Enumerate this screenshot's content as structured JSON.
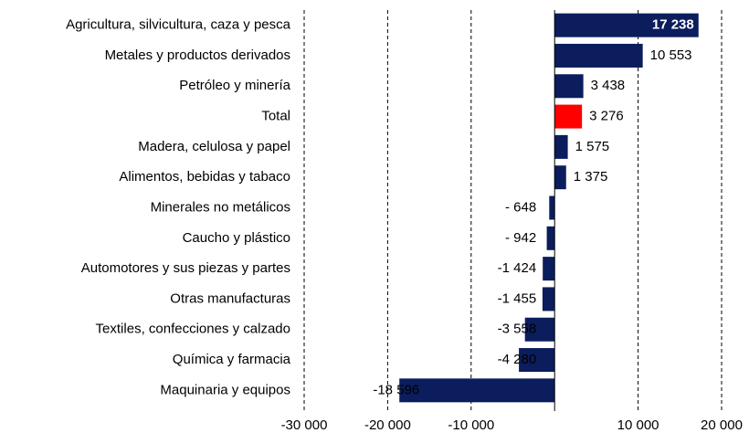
{
  "chart_data": {
    "type": "hbar",
    "categories": [
      "Agricultura, silvicultura, caza y pesca",
      "Metales y productos derivados",
      "Petróleo y minería",
      "Total",
      "Madera, celulosa y papel",
      "Alimentos, bebidas y tabaco",
      "Minerales no metálicos",
      "Caucho y plástico",
      "Automotores y sus piezas y partes",
      "Otras manufacturas",
      "Textiles, confecciones y calzado",
      "Química y farmacia",
      "Maquinaria y equipos"
    ],
    "values": [
      17238,
      10553,
      3438,
      3276,
      1575,
      1375,
      -648,
      -942,
      -1424,
      -1455,
      -3558,
      -4280,
      -18596
    ],
    "value_labels": [
      "17 238",
      "10 553",
      "3 438",
      "3 276",
      "1 575",
      "1 375",
      "- 648",
      "- 942",
      "-1 424",
      "-1 455",
      "-3 558",
      "-4 280",
      "-18 596"
    ],
    "colors": [
      "#0b1d5c",
      "#0b1d5c",
      "#0b1d5c",
      "#ff0000",
      "#0b1d5c",
      "#0b1d5c",
      "#0b1d5c",
      "#0b1d5c",
      "#0b1d5c",
      "#0b1d5c",
      "#0b1d5c",
      "#0b1d5c",
      "#0b1d5c"
    ],
    "xlim": [
      -30000,
      20000
    ],
    "xticks": [
      {
        "value": -30000,
        "label": "-30 000"
      },
      {
        "value": -20000,
        "label": "-20 000"
      },
      {
        "value": -10000,
        "label": "-10 000"
      },
      {
        "value": 10000,
        "label": "10 000"
      },
      {
        "value": 20000,
        "label": "20 000"
      }
    ],
    "grid": true
  }
}
